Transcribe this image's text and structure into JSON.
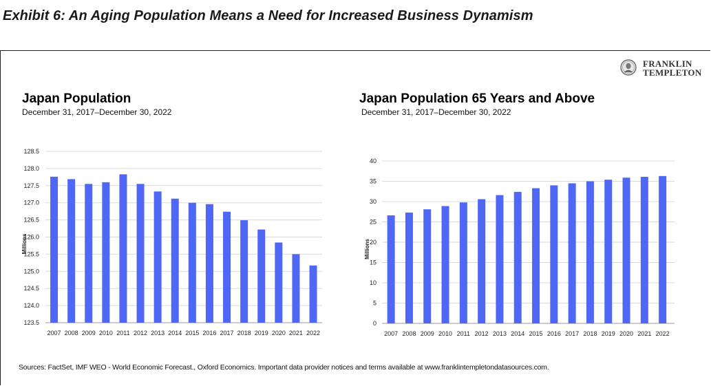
{
  "exhibit_title": "Exhibit 6: An Aging Population Means a Need for Increased Business Dynamism",
  "logo": {
    "line1": "FRANKLIN",
    "line2": "TEMPLETON",
    "icon": "franklin-portrait-seal-icon"
  },
  "colors": {
    "bar": "#4e68f5",
    "grid": "#d9d9d9",
    "axis": "#999999"
  },
  "sources": "Sources: FactSet, IMF WEO - World Economic Forecast., Oxford Economics. Important data provider notices and terms available at www.franklintempletondatasources.com.",
  "chart_data": [
    {
      "type": "bar",
      "title": "Japan Population",
      "subtitle": "December 31, 2017–December 30, 2022",
      "ylabel": "Millions",
      "xlabel": "",
      "ylim": [
        123.5,
        128.5
      ],
      "yticks": [
        "123.5",
        "124.0",
        "124.5",
        "125.0",
        "125.5",
        "126.0",
        "126.5",
        "127.0",
        "127.5",
        "128.0",
        "128.5"
      ],
      "grid": true,
      "categories": [
        "2007",
        "2008",
        "2009",
        "2010",
        "2011",
        "2012",
        "2013",
        "2014",
        "2015",
        "2016",
        "2017",
        "2018",
        "2019",
        "2020",
        "2021",
        "2022"
      ],
      "values": [
        127.76,
        127.69,
        127.55,
        127.6,
        127.83,
        127.55,
        127.33,
        127.12,
        127.0,
        126.96,
        126.74,
        126.49,
        126.22,
        125.84,
        125.5,
        125.17
      ]
    },
    {
      "type": "bar",
      "title": "Japan Population 65 Years and Above",
      "subtitle": "December 31, 2017–December 30, 2022",
      "ylabel": "Millions",
      "xlabel": "",
      "ylim": [
        0,
        40
      ],
      "yticks": [
        "0",
        "5",
        "10",
        "15",
        "20",
        "25",
        "30",
        "35",
        "40"
      ],
      "grid": true,
      "categories": [
        "2007",
        "2008",
        "2009",
        "2010",
        "2011",
        "2012",
        "2013",
        "2014",
        "2015",
        "2016",
        "2017",
        "2018",
        "2019",
        "2020",
        "2021",
        "2022"
      ],
      "values": [
        26.6,
        27.3,
        28.1,
        28.9,
        29.8,
        30.6,
        31.6,
        32.4,
        33.3,
        34.0,
        34.5,
        35.0,
        35.4,
        35.9,
        36.1,
        36.3
      ]
    }
  ]
}
